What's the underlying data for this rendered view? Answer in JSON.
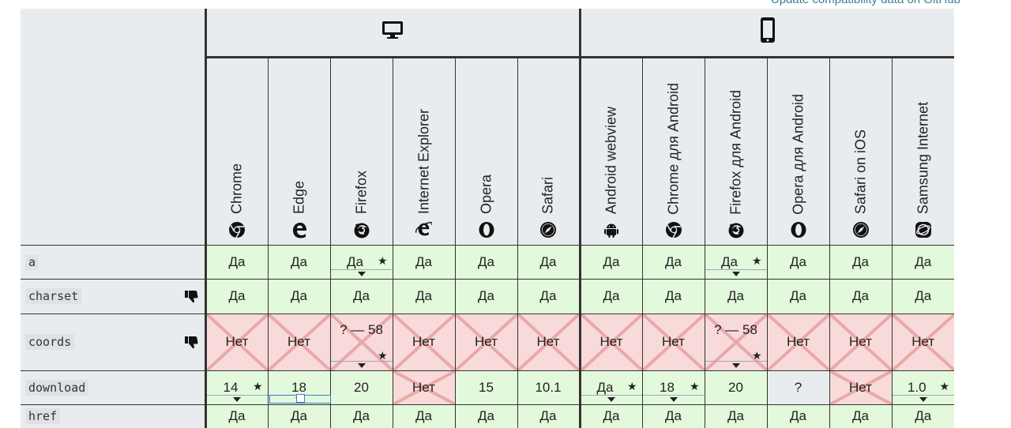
{
  "header": {
    "update_link": "Update compatibility data on GitHub"
  },
  "groups": {
    "desktop_icon": "desktop-icon",
    "mobile_icon": "mobile-phone-icon"
  },
  "browsers": [
    {
      "name": "Chrome",
      "icon": "chrome-icon"
    },
    {
      "name": "Edge",
      "icon": "edge-icon"
    },
    {
      "name": "Firefox",
      "icon": "firefox-icon"
    },
    {
      "name": "Internet Explorer",
      "icon": "ie-icon"
    },
    {
      "name": "Opera",
      "icon": "opera-icon"
    },
    {
      "name": "Safari",
      "icon": "safari-icon"
    },
    {
      "name": "Android webview",
      "icon": "android-icon"
    },
    {
      "name": "Chrome для Android",
      "icon": "chrome-icon"
    },
    {
      "name": "Firefox для Android",
      "icon": "firefox-icon"
    },
    {
      "name": "Opera для Android",
      "icon": "opera-icon"
    },
    {
      "name": "Safari on iOS",
      "icon": "safari-icon"
    },
    {
      "name": "Samsung Internet",
      "icon": "samsung-icon"
    }
  ],
  "rows": [
    {
      "feature": "a",
      "deprecated": false,
      "cells": [
        {
          "v": "Да",
          "s": "yes"
        },
        {
          "v": "Да",
          "s": "yes"
        },
        {
          "v": "Да",
          "s": "yes",
          "star": true,
          "tri": true
        },
        {
          "v": "Да",
          "s": "yes"
        },
        {
          "v": "Да",
          "s": "yes"
        },
        {
          "v": "Да",
          "s": "yes"
        },
        {
          "v": "Да",
          "s": "yes"
        },
        {
          "v": "Да",
          "s": "yes"
        },
        {
          "v": "Да",
          "s": "yes",
          "star": true,
          "tri": true
        },
        {
          "v": "Да",
          "s": "yes"
        },
        {
          "v": "Да",
          "s": "yes"
        },
        {
          "v": "Да",
          "s": "yes"
        }
      ]
    },
    {
      "feature": "charset",
      "deprecated": true,
      "cells": [
        {
          "v": "Да",
          "s": "yes"
        },
        {
          "v": "Да",
          "s": "yes"
        },
        {
          "v": "Да",
          "s": "yes"
        },
        {
          "v": "Да",
          "s": "yes"
        },
        {
          "v": "Да",
          "s": "yes"
        },
        {
          "v": "Да",
          "s": "yes"
        },
        {
          "v": "Да",
          "s": "yes"
        },
        {
          "v": "Да",
          "s": "yes"
        },
        {
          "v": "Да",
          "s": "yes"
        },
        {
          "v": "Да",
          "s": "yes"
        },
        {
          "v": "Да",
          "s": "yes"
        },
        {
          "v": "Да",
          "s": "yes"
        }
      ]
    },
    {
      "feature": "coords",
      "deprecated": true,
      "cells": [
        {
          "v": "Нет",
          "s": "no"
        },
        {
          "v": "Нет",
          "s": "no"
        },
        {
          "v": "? — 58",
          "s": "no",
          "star": true,
          "tri": true,
          "top": true
        },
        {
          "v": "Нет",
          "s": "no"
        },
        {
          "v": "Нет",
          "s": "no"
        },
        {
          "v": "Нет",
          "s": "no"
        },
        {
          "v": "Нет",
          "s": "no"
        },
        {
          "v": "Нет",
          "s": "no"
        },
        {
          "v": "? — 58",
          "s": "no",
          "star": true,
          "tri": true,
          "top": true
        },
        {
          "v": "Нет",
          "s": "no"
        },
        {
          "v": "Нет",
          "s": "no"
        },
        {
          "v": "Нет",
          "s": "no"
        }
      ]
    },
    {
      "feature": "download",
      "deprecated": false,
      "cells": [
        {
          "v": "14",
          "s": "yes",
          "star": true,
          "tri": true
        },
        {
          "v": "18",
          "s": "yes",
          "tri": true
        },
        {
          "v": "20",
          "s": "yes"
        },
        {
          "v": "Нет",
          "s": "no"
        },
        {
          "v": "15",
          "s": "yes"
        },
        {
          "v": "10.1",
          "s": "yes"
        },
        {
          "v": "Да",
          "s": "yes",
          "star": true,
          "tri": true
        },
        {
          "v": "18",
          "s": "yes",
          "star": true,
          "tri": true
        },
        {
          "v": "20",
          "s": "yes"
        },
        {
          "v": "?",
          "s": "unknown"
        },
        {
          "v": "Нет",
          "s": "no"
        },
        {
          "v": "1.0",
          "s": "yes",
          "star": true,
          "tri": true
        }
      ]
    },
    {
      "feature": "href",
      "deprecated": false,
      "cells": [
        {
          "v": "Да",
          "s": "yes"
        },
        {
          "v": "Да",
          "s": "yes"
        },
        {
          "v": "Да",
          "s": "yes"
        },
        {
          "v": "Да",
          "s": "yes"
        },
        {
          "v": "Да",
          "s": "yes"
        },
        {
          "v": "Да",
          "s": "yes"
        },
        {
          "v": "Да",
          "s": "yes"
        },
        {
          "v": "Да",
          "s": "yes"
        },
        {
          "v": "Да",
          "s": "yes"
        },
        {
          "v": "Да",
          "s": "yes"
        },
        {
          "v": "Да",
          "s": "yes"
        },
        {
          "v": "Да",
          "s": "yes"
        }
      ]
    }
  ],
  "colors": {
    "yes": "#e3f9db",
    "no": "#f8dada",
    "unknown": "#e9ecef",
    "x": "#e9a9a9"
  }
}
